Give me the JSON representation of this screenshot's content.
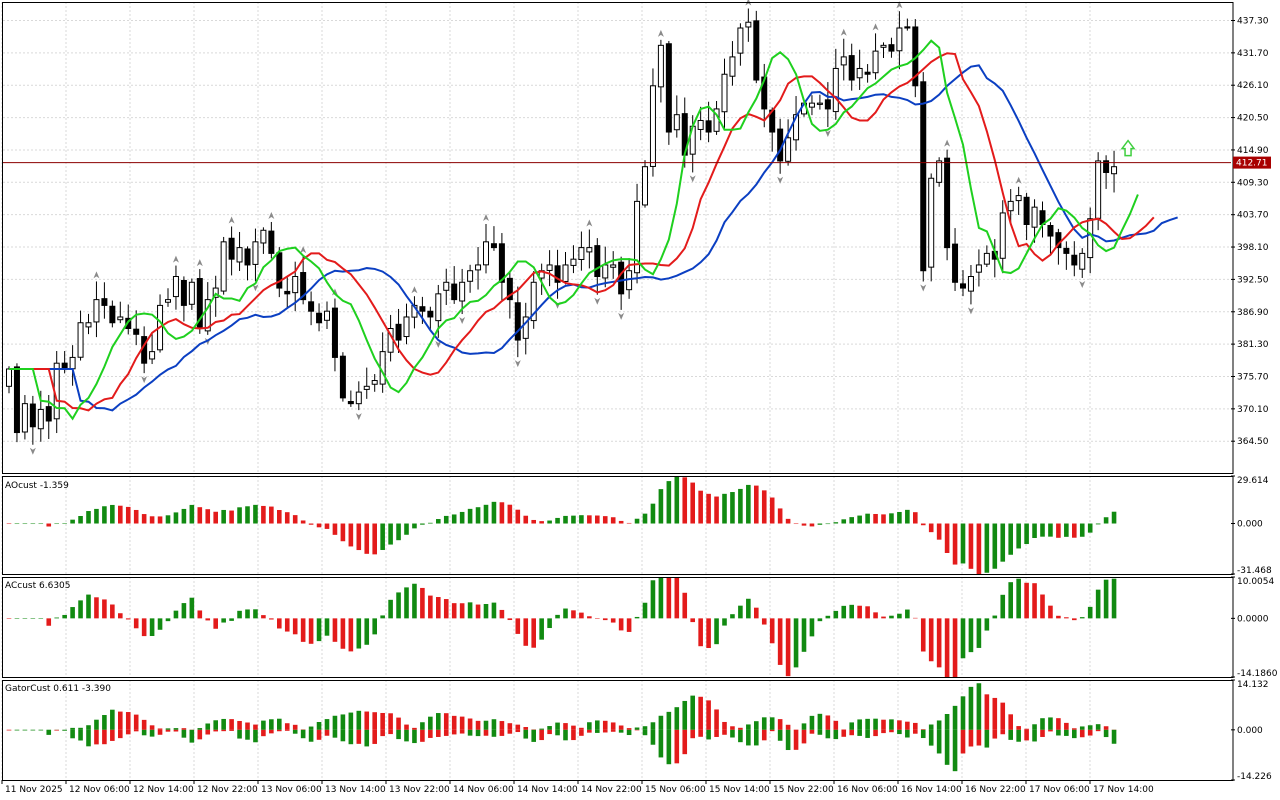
{
  "colors": {
    "background": "#ffffff",
    "grid": "#d9d9d9",
    "frame": "#000000",
    "bull_candle_fill": "#ffffff",
    "bear_candle_fill": "#000000",
    "jaw": "#0b3fc2",
    "teeth": "#e31b1b",
    "lips": "#1fd01f",
    "price_line": "#8b0000",
    "price_tag_bg": "#a80000",
    "hist_up": "#118a11",
    "hist_down": "#e31b1b",
    "arrow": "#8a8a8a",
    "signal_arrow": "#3fcf3f"
  },
  "chart_data": [
    {
      "type": "candlestick",
      "title": "",
      "price_axis_ticks": [
        "437.30",
        "431.70",
        "426.10",
        "420.50",
        "414.90",
        "409.30",
        "403.70",
        "398.10",
        "392.50",
        "386.90",
        "381.30",
        "375.70",
        "370.10",
        "364.50"
      ],
      "ylim": [
        359.0,
        440.5
      ],
      "current_price": "412.71",
      "closes": [
        377,
        366,
        371,
        367,
        370,
        368,
        378,
        377,
        379,
        385,
        385,
        389,
        388,
        385,
        386,
        384,
        383,
        378,
        380,
        388,
        389,
        393,
        388,
        392,
        384,
        389,
        391,
        399,
        396,
        398,
        395,
        399,
        401,
        397,
        391,
        390,
        393,
        389,
        387,
        385,
        387,
        379,
        372,
        371,
        373,
        374,
        375,
        380,
        384,
        382,
        386,
        388,
        387,
        386,
        390,
        392,
        389,
        392,
        394,
        395,
        399,
        398,
        392,
        389,
        382,
        386,
        392,
        394,
        395,
        392,
        395,
        396,
        398,
        398,
        393,
        395,
        395,
        390,
        394,
        406,
        412,
        426,
        433,
        418,
        421,
        414,
        419,
        420,
        418,
        422,
        428,
        431,
        436,
        437,
        427,
        422,
        418,
        413,
        417,
        421,
        423,
        423,
        423,
        422,
        429,
        431,
        427,
        429,
        428,
        432,
        433,
        432,
        436,
        436,
        426,
        394,
        410,
        413,
        398,
        392,
        391,
        393,
        395,
        397,
        396,
        404,
        406,
        407,
        402,
        405,
        402,
        400,
        398,
        397,
        395,
        397,
        403,
        413,
        411,
        412
      ],
      "bar_time_labels": [
        "11 Nov 2025",
        "12 Nov 06:00",
        "12 Nov 14:00",
        "12 Nov 22:00",
        "13 Nov 06:00",
        "13 Nov 14:00",
        "13 Nov 22:00",
        "14 Nov 06:00",
        "14 Nov 14:00",
        "14 Nov 22:00",
        "15 Nov 06:00",
        "15 Nov 14:00",
        "15 Nov 22:00",
        "16 Nov 06:00",
        "16 Nov 14:00",
        "16 Nov 22:00",
        "17 Nov 06:00",
        "17 Nov 14:00"
      ],
      "series": [
        {
          "name": "",
          "color": "#0b3fc2",
          "values": []
        },
        {
          "name": "",
          "color": "#e31b1b",
          "values": []
        },
        {
          "name": "",
          "color": "#1fd01f",
          "values": []
        }
      ]
    },
    {
      "type": "histogram",
      "label": "AOcust -1.359",
      "ticks": [
        "29.614",
        "0.000",
        "-31.468"
      ],
      "ylim": [
        -31.468,
        29.614
      ],
      "values": []
    },
    {
      "type": "histogram",
      "label": "ACcust 6.6305",
      "ticks": [
        "10.0054",
        "0.0000",
        "-14.1860"
      ],
      "ylim": [
        -14.186,
        10.0054
      ],
      "values": []
    },
    {
      "type": "gator",
      "label": "GatorCust 0.611 -3.390",
      "ticks": [
        "14.132",
        "0.000",
        "-14.226"
      ],
      "ylim": [
        -14.226,
        14.132
      ],
      "upper": [],
      "lower": []
    }
  ]
}
